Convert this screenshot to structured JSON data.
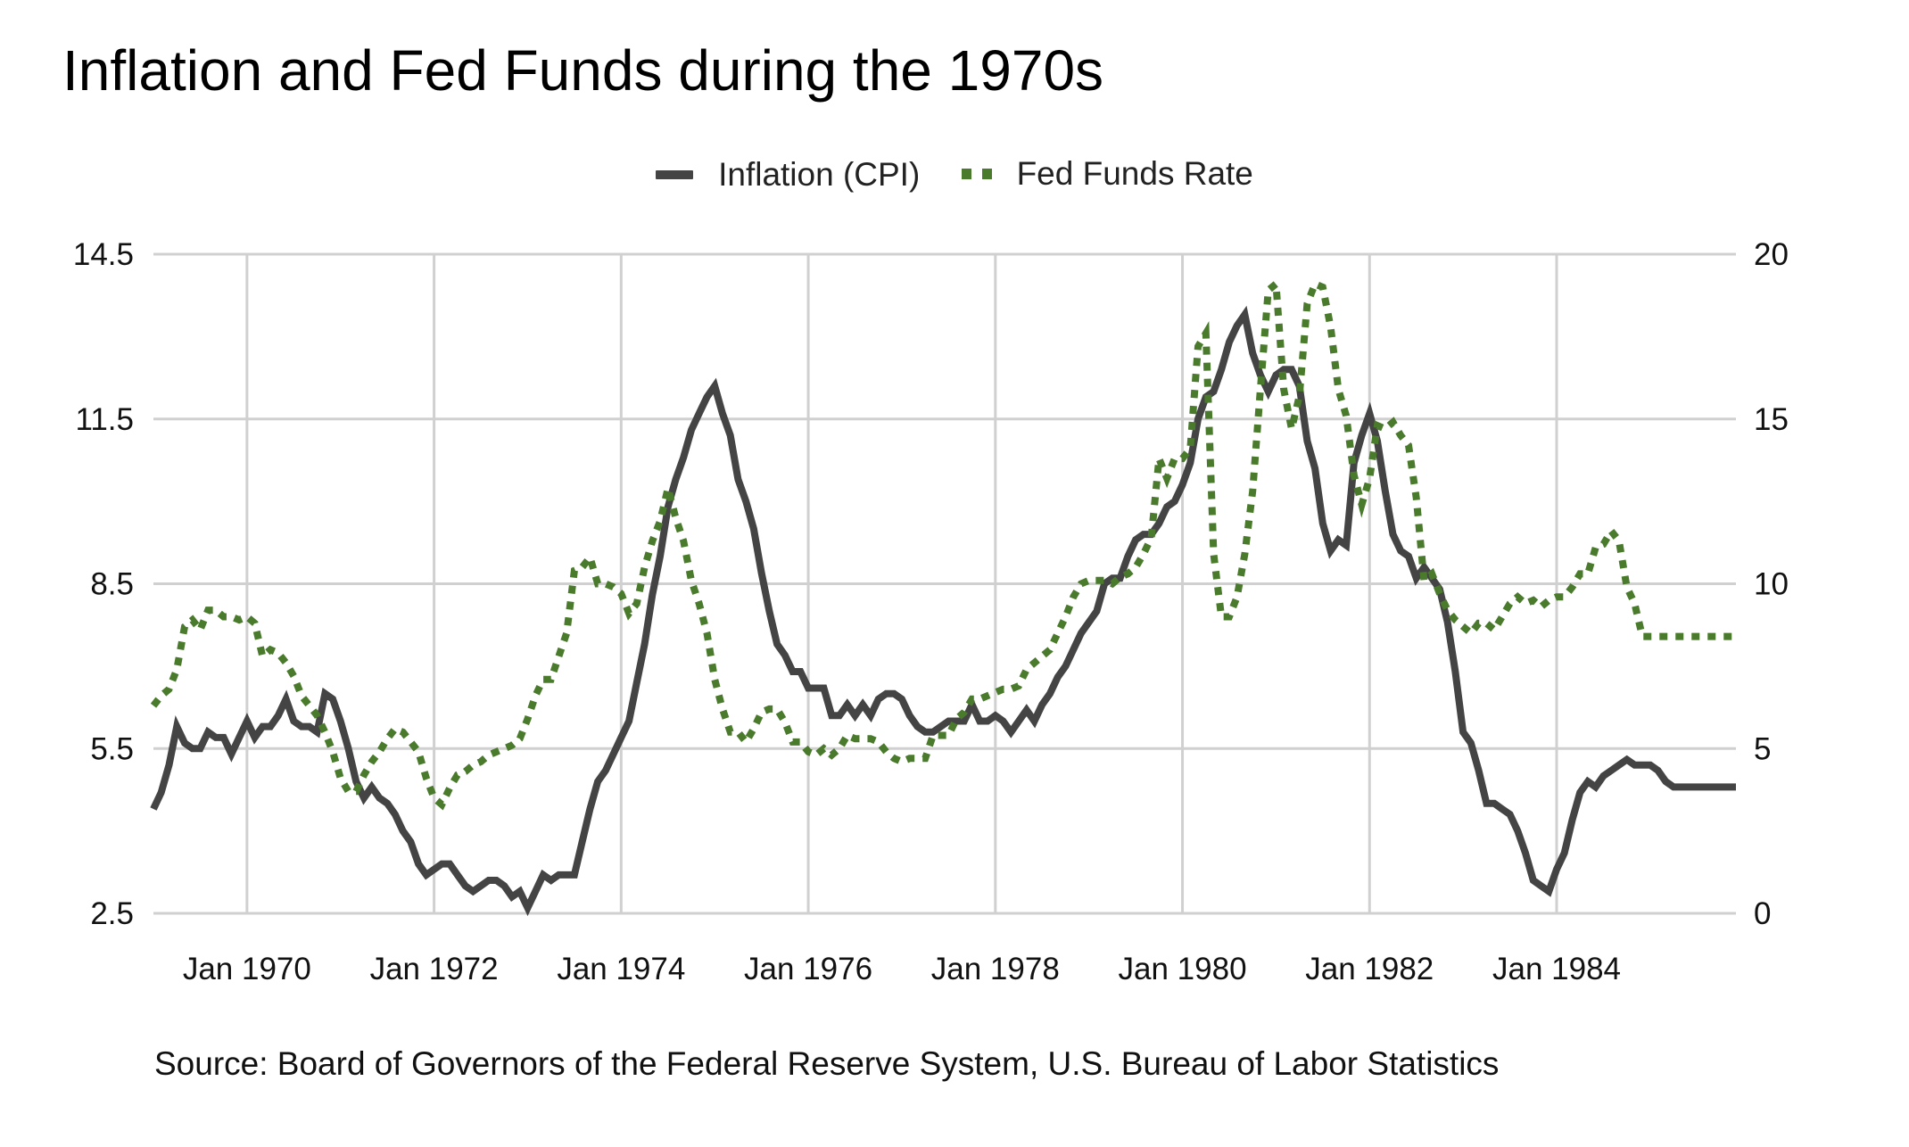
{
  "chart_data": {
    "type": "line",
    "title": "Inflation and Fed Funds during the 1970s",
    "source": "Source:  Board of Governors of the Federal Reserve System, U.S. Bureau of Labor Statistics",
    "x_start": "Jan 1969",
    "x_end": "Dec 1984",
    "frequency": "monthly",
    "x_ticks": [
      "Jan 1970",
      "Jan 1972",
      "Jan 1974",
      "Jan 1976",
      "Jan 1978",
      "Jan 1980",
      "Jan 1982",
      "Jan 1984"
    ],
    "y_left": {
      "label": "",
      "ticks": [
        "2.5",
        "5.5",
        "8.5",
        "11.5",
        "14.5"
      ],
      "ylim": [
        2.5,
        14.5
      ]
    },
    "y_right": {
      "label": "",
      "ticks": [
        "0",
        "5",
        "10",
        "15",
        "20"
      ],
      "ylim": [
        0,
        20
      ]
    },
    "grid": true,
    "legend_position": "top-center",
    "series": [
      {
        "name": "Inflation (CPI)",
        "axis": "left",
        "style": "solid",
        "color": "#444444",
        "values": [
          4.4,
          4.7,
          5.2,
          5.9,
          5.6,
          5.5,
          5.5,
          5.8,
          5.7,
          5.7,
          5.4,
          5.7,
          6.0,
          5.7,
          5.9,
          5.9,
          6.1,
          6.4,
          6.0,
          5.9,
          5.9,
          5.8,
          6.5,
          6.4,
          6.0,
          5.5,
          4.9,
          4.6,
          4.8,
          4.6,
          4.5,
          4.3,
          4.0,
          3.8,
          3.4,
          3.2,
          3.3,
          3.4,
          3.4,
          3.2,
          3.0,
          2.9,
          3.0,
          3.1,
          3.1,
          3.0,
          2.8,
          2.9,
          2.6,
          2.9,
          3.2,
          3.1,
          3.2,
          3.2,
          3.2,
          3.8,
          4.4,
          4.9,
          5.1,
          5.4,
          5.7,
          6.0,
          6.7,
          7.4,
          8.3,
          9.0,
          9.9,
          10.4,
          10.8,
          11.3,
          11.6,
          11.9,
          12.1,
          11.6,
          11.2,
          10.4,
          10.0,
          9.5,
          8.7,
          8.0,
          7.4,
          7.2,
          6.9,
          6.9,
          6.6,
          6.6,
          6.6,
          6.1,
          6.1,
          6.3,
          6.1,
          6.3,
          6.1,
          6.4,
          6.5,
          6.5,
          6.4,
          6.1,
          5.9,
          5.8,
          5.8,
          5.9,
          6.0,
          6.0,
          6.0,
          6.3,
          6.0,
          6.0,
          6.1,
          6.0,
          5.8,
          6.0,
          6.2,
          6.0,
          6.3,
          6.5,
          6.8,
          7.0,
          7.3,
          7.6,
          7.8,
          8.0,
          8.5,
          8.6,
          8.6,
          9.0,
          9.3,
          9.4,
          9.4,
          9.6,
          9.9,
          10.0,
          10.3,
          10.7,
          11.5,
          11.9,
          12.0,
          12.4,
          12.9,
          13.2,
          13.4,
          12.7,
          12.3,
          12.0,
          12.3,
          12.4,
          12.4,
          12.1,
          11.1,
          10.6,
          9.6,
          9.1,
          9.3,
          9.2,
          10.7,
          11.2,
          11.6,
          11.1,
          10.2,
          9.4,
          9.1,
          9.0,
          8.6,
          8.8,
          8.6,
          8.4,
          7.8,
          6.9,
          5.8,
          5.6,
          5.1,
          4.5,
          4.5,
          4.4,
          4.3,
          4.0,
          3.6,
          3.1,
          3.0,
          2.9,
          3.3,
          3.6,
          4.2,
          4.7,
          4.9,
          4.8,
          5.0,
          5.1,
          5.2,
          5.3,
          5.2,
          5.2,
          5.2,
          5.1,
          4.9,
          4.8,
          4.8,
          4.8,
          4.8,
          4.8,
          4.8,
          4.8,
          4.8,
          4.8
        ]
      },
      {
        "name": "Fed Funds Rate",
        "axis": "right",
        "style": "dotted",
        "color": "#4a7a2c",
        "values": [
          6.3,
          6.6,
          6.8,
          7.4,
          8.7,
          8.9,
          8.6,
          9.2,
          9.2,
          9.0,
          9.0,
          8.9,
          9.0,
          8.8,
          7.8,
          8.0,
          7.9,
          7.6,
          7.2,
          6.6,
          6.3,
          6.0,
          5.5,
          4.9,
          4.1,
          3.7,
          3.7,
          4.2,
          4.6,
          4.9,
          5.3,
          5.6,
          5.5,
          5.2,
          4.9,
          4.1,
          3.5,
          3.3,
          3.8,
          4.2,
          4.3,
          4.5,
          4.6,
          4.8,
          4.9,
          5.0,
          5.1,
          5.3,
          5.9,
          6.6,
          7.1,
          7.1,
          7.8,
          8.5,
          10.4,
          10.5,
          10.8,
          10.0,
          10.0,
          9.9,
          9.7,
          9.1,
          9.4,
          10.5,
          11.3,
          11.9,
          12.9,
          12.0,
          11.3,
          10.1,
          9.4,
          8.5,
          7.1,
          6.2,
          5.5,
          5.5,
          5.2,
          5.6,
          6.1,
          6.2,
          6.2,
          5.8,
          5.2,
          5.2,
          4.9,
          4.8,
          5.0,
          4.8,
          5.0,
          5.4,
          5.3,
          5.3,
          5.3,
          5.2,
          4.9,
          4.7,
          4.6,
          4.7,
          4.7,
          4.7,
          5.4,
          5.4,
          5.4,
          5.9,
          6.1,
          6.5,
          6.5,
          6.6,
          6.7,
          6.8,
          6.8,
          6.9,
          7.4,
          7.6,
          7.8,
          8.0,
          8.5,
          9.0,
          9.6,
          10.0,
          10.1,
          10.1,
          10.1,
          10.0,
          10.2,
          10.3,
          10.5,
          10.9,
          11.4,
          13.8,
          13.2,
          13.8,
          13.8,
          14.1,
          17.2,
          17.6,
          10.9,
          9.0,
          9.0,
          9.6,
          10.9,
          12.8,
          15.9,
          18.9,
          19.1,
          15.9,
          14.7,
          15.7,
          18.5,
          19.1,
          19.0,
          17.8,
          15.9,
          15.1,
          13.3,
          12.4,
          13.2,
          14.8,
          14.7,
          14.9,
          14.5,
          14.2,
          12.6,
          10.1,
          10.3,
          9.7,
          9.2,
          8.9,
          8.7,
          8.5,
          8.8,
          8.8,
          8.6,
          9.0,
          9.4,
          9.6,
          9.4,
          9.5,
          9.3,
          9.5,
          9.6,
          9.6,
          9.9,
          10.3,
          10.3,
          11.1,
          11.2,
          11.6,
          11.3,
          9.9,
          9.4,
          8.4,
          8.4,
          8.4,
          8.4,
          8.4,
          8.4,
          8.4,
          8.4,
          8.4,
          8.4,
          8.4,
          8.4,
          8.4
        ]
      }
    ]
  }
}
